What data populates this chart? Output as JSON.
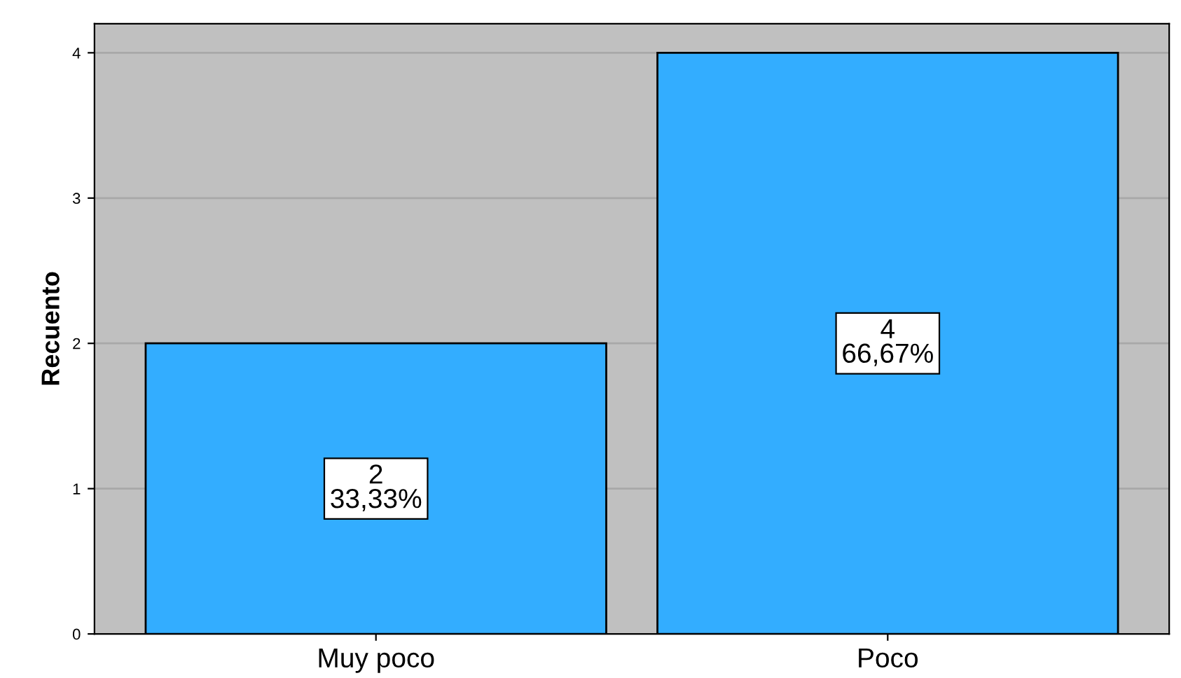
{
  "chart_data": {
    "type": "bar",
    "ylabel": "Recuento",
    "categories": [
      "Muy poco",
      "Poco"
    ],
    "values": [
      2,
      4
    ],
    "color": "#33adff",
    "value_labels": [
      "2\n33,33%",
      "4\n66,67%"
    ],
    "ylim": [
      0,
      4.2
    ],
    "yticks": [
      0,
      1,
      2,
      3,
      4
    ],
    "grid": "y"
  }
}
